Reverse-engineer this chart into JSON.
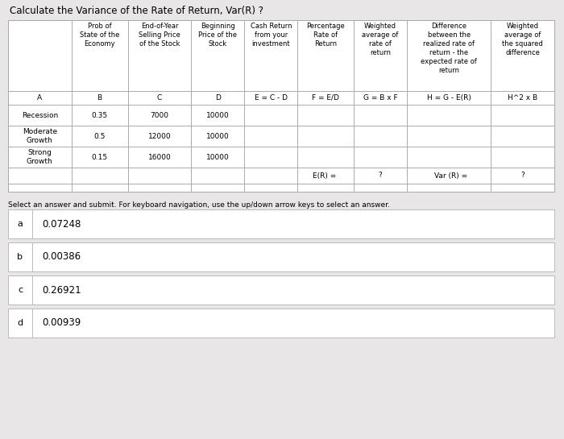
{
  "title": "Calculate the Variance of the Rate of Return, Var(R) ?",
  "bg_color": "#e8e6e6",
  "table_bg": "#ffffff",
  "header_map": {
    "1": "Prob of\nState of the\nEconomy",
    "2": "End-of-Year\nSelling Price\nof the Stock",
    "3": "Beginning\nPrice of the\nStock",
    "4": "Cash Return\nfrom your\ninvestment",
    "5": "Percentage\nRate of\nReturn",
    "6": "Weighted\naverage of\nrate of\nreturn",
    "7": "Difference\nbetween the\nrealized rate of\nreturn - the\nexpected rate of\nreturn",
    "8": "Weighted\naverage of\nthe squared\ndifference"
  },
  "sub_headers": [
    "A",
    "B",
    "C",
    "D",
    "E = C - D",
    "F = E/D",
    "G = B x F",
    "H = G - E(R)",
    "H^2 x B"
  ],
  "row_data": [
    [
      "Recession",
      "0.35",
      "7000",
      "10000"
    ],
    [
      "Moderate\nGrowth",
      "0.5",
      "12000",
      "10000"
    ],
    [
      "Strong\nGrowth",
      "0.15",
      "16000",
      "10000"
    ]
  ],
  "select_text": "Select an answer and submit. For keyboard navigation, use the up/down arrow keys to select an answer.",
  "answers": [
    {
      "label": "a",
      "value": "0.07248"
    },
    {
      "label": "b",
      "value": "0.00386"
    },
    {
      "label": "c",
      "value": "0.26921"
    },
    {
      "label": "d",
      "value": "0.00939"
    }
  ],
  "col_widths_rel": [
    62,
    55,
    62,
    52,
    52,
    55,
    52,
    82,
    62
  ],
  "table_line_color": "#aaaaaa",
  "title_fontsize": 8.5,
  "header_fontsize": 6.0,
  "sub_header_fontsize": 6.5,
  "data_fontsize": 6.5,
  "footer_fontsize": 6.5,
  "select_fontsize": 6.5,
  "answer_label_fontsize": 8.0,
  "answer_value_fontsize": 8.5
}
